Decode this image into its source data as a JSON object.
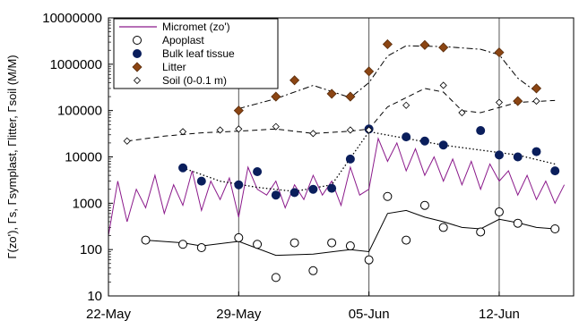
{
  "chart_data": {
    "type": "line",
    "title": "",
    "xlabel": "",
    "ylabel": "Γ(zo'), Γs, Γsymplast, Γlitter, Γsoil (M/M)",
    "y_scale": "log",
    "ylim": [
      10,
      10000000
    ],
    "xlim": [
      "2010-05-22",
      "2010-06-16"
    ],
    "grid": "vertical lines at date ticks",
    "legend_position": "top-left",
    "y_ticks": [
      "10",
      "100",
      "1000",
      "10000",
      "100000",
      "1000000",
      "10000000"
    ],
    "x_ticks": [
      "22-May",
      "29-May",
      "05-Jun",
      "12-Jun"
    ],
    "series": [
      {
        "name": "Micromet (zo')",
        "style": "line",
        "color": "#8b1a8b",
        "x": [
          "2010-05-22",
          "2010-05-22.5",
          "2010-05-23",
          "2010-05-23.5",
          "2010-05-24",
          "2010-05-24.5",
          "2010-05-25",
          "2010-05-25.5",
          "2010-05-26",
          "2010-05-26.5",
          "2010-05-27",
          "2010-05-27.5",
          "2010-05-28",
          "2010-05-28.5",
          "2010-05-29",
          "2010-05-29.5",
          "2010-05-30",
          "2010-05-30.5",
          "2010-05-31",
          "2010-05-31.5",
          "2010-06-01",
          "2010-06-01.5",
          "2010-06-02",
          "2010-06-02.5",
          "2010-06-03",
          "2010-06-03.5",
          "2010-06-04",
          "2010-06-04.5",
          "2010-06-05",
          "2010-06-05.5",
          "2010-06-06",
          "2010-06-06.5",
          "2010-06-07",
          "2010-06-07.5",
          "2010-06-08",
          "2010-06-08.5",
          "2010-06-09",
          "2010-06-09.5",
          "2010-06-10",
          "2010-06-10.5",
          "2010-06-11",
          "2010-06-11.5",
          "2010-06-12",
          "2010-06-12.5",
          "2010-06-13",
          "2010-06-13.5",
          "2010-06-14",
          "2010-06-14.5",
          "2010-06-15",
          "2010-06-15.5"
        ],
        "values": [
          200,
          3000,
          400,
          2000,
          800,
          4000,
          600,
          2500,
          900,
          5000,
          700,
          3000,
          1200,
          3500,
          500,
          6000,
          2000,
          1500,
          3000,
          800,
          2500,
          1200,
          4000,
          1500,
          3000,
          900,
          6000,
          1500,
          2000,
          25000,
          8000,
          20000,
          5000,
          15000,
          4000,
          10000,
          3000,
          9000,
          2500,
          8000,
          2000,
          7000,
          3000,
          5000,
          1500,
          4000,
          1200,
          3000,
          1000,
          2500
        ]
      },
      {
        "name": "Apoplast",
        "style": "open-circle",
        "x": [
          "2010-05-24",
          "2010-05-26",
          "2010-05-27",
          "2010-05-29",
          "2010-05-30",
          "2010-05-31",
          "2010-06-01",
          "2010-06-02",
          "2010-06-03",
          "2010-06-04",
          "2010-06-05",
          "2010-06-06",
          "2010-06-07",
          "2010-06-08",
          "2010-06-09",
          "2010-06-11",
          "2010-06-12",
          "2010-06-13",
          "2010-06-15"
        ],
        "values": [
          160,
          130,
          110,
          180,
          130,
          25,
          140,
          35,
          140,
          120,
          60,
          1400,
          160,
          900,
          300,
          240,
          650,
          370,
          280
        ]
      },
      {
        "name": "Apoplast (fit)",
        "style": "solid-line",
        "x": [
          "2010-05-24",
          "2010-05-26",
          "2010-05-27",
          "2010-05-29",
          "2010-05-31",
          "2010-06-02",
          "2010-06-04",
          "2010-06-05",
          "2010-06-06",
          "2010-06-07",
          "2010-06-08",
          "2010-06-09",
          "2010-06-10",
          "2010-06-11",
          "2010-06-12",
          "2010-06-13",
          "2010-06-14",
          "2010-06-15"
        ],
        "values": [
          160,
          140,
          120,
          150,
          75,
          80,
          100,
          90,
          600,
          700,
          500,
          400,
          300,
          280,
          450,
          380,
          300,
          280
        ]
      },
      {
        "name": "Bulk leaf tissue",
        "style": "filled-circle",
        "x": [
          "2010-05-26",
          "2010-05-27",
          "2010-05-29",
          "2010-05-30",
          "2010-05-31",
          "2010-06-01",
          "2010-06-02",
          "2010-06-03",
          "2010-06-04",
          "2010-06-05",
          "2010-06-07",
          "2010-06-08",
          "2010-06-09",
          "2010-06-11",
          "2010-06-12",
          "2010-06-13",
          "2010-06-14",
          "2010-06-15"
        ],
        "values": [
          5800,
          3000,
          2500,
          4800,
          1500,
          1700,
          2000,
          2100,
          9000,
          40000,
          27000,
          22000,
          18000,
          37000,
          11000,
          10000,
          13000,
          5000
        ]
      },
      {
        "name": "Bulk leaf tissue (fit)",
        "style": "dotted-line",
        "x": [
          "2010-05-26",
          "2010-05-28",
          "2010-05-30",
          "2010-06-01",
          "2010-06-03",
          "2010-06-05",
          "2010-06-07",
          "2010-06-09",
          "2010-06-11",
          "2010-06-13",
          "2010-06-15"
        ],
        "values": [
          5800,
          3000,
          2200,
          1800,
          2500,
          35000,
          25000,
          18000,
          14000,
          11000,
          7000
        ]
      },
      {
        "name": "Litter",
        "style": "filled-diamond",
        "color": "#8b4513",
        "x": [
          "2010-05-29",
          "2010-05-31",
          "2010-06-01",
          "2010-06-03",
          "2010-06-04",
          "2010-06-05",
          "2010-06-06",
          "2010-06-08",
          "2010-06-09",
          "2010-06-12",
          "2010-06-13",
          "2010-06-14"
        ],
        "values": [
          100000,
          200000,
          450000,
          230000,
          200000,
          700000,
          2700000,
          2600000,
          2300000,
          1800000,
          160000,
          300000
        ]
      },
      {
        "name": "Litter (fit)",
        "style": "dash-dot-line",
        "x": [
          "2010-05-29",
          "2010-05-31",
          "2010-06-02",
          "2010-06-04",
          "2010-06-05",
          "2010-06-06",
          "2010-06-07",
          "2010-06-09",
          "2010-06-11",
          "2010-06-12",
          "2010-06-13",
          "2010-06-14"
        ],
        "values": [
          110000,
          180000,
          350000,
          190000,
          400000,
          1500000,
          2500000,
          2400000,
          2100000,
          1600000,
          500000,
          250000
        ]
      },
      {
        "name": "Soil (0-0.1 m)",
        "style": "open-diamond",
        "x": [
          "2010-05-23",
          "2010-05-26",
          "2010-05-28",
          "2010-05-29",
          "2010-05-31",
          "2010-06-02",
          "2010-06-04",
          "2010-06-05",
          "2010-06-07",
          "2010-06-09",
          "2010-06-10",
          "2010-06-12",
          "2010-06-14"
        ],
        "values": [
          22000,
          35000,
          38000,
          40000,
          45000,
          32000,
          38000,
          38000,
          130000,
          350000,
          90000,
          150000,
          160000
        ]
      },
      {
        "name": "Soil (fit)",
        "style": "dashed-line",
        "x": [
          "2010-05-23",
          "2010-05-25",
          "2010-05-27",
          "2010-05-29",
          "2010-05-31",
          "2010-06-02",
          "2010-06-04",
          "2010-06-05",
          "2010-06-06",
          "2010-06-08",
          "2010-06-09",
          "2010-06-10",
          "2010-06-11",
          "2010-06-13",
          "2010-06-15"
        ],
        "values": [
          22000,
          28000,
          33000,
          36000,
          40000,
          32000,
          36000,
          40000,
          120000,
          300000,
          250000,
          100000,
          90000,
          150000,
          165000
        ]
      }
    ],
    "legend": [
      {
        "label": "Micromet (zo')",
        "marker": "line",
        "color": "#8b1a8b"
      },
      {
        "label": "Apoplast",
        "marker": "open-circle"
      },
      {
        "label": "Bulk leaf tissue",
        "marker": "filled-circle"
      },
      {
        "label": "Litter",
        "marker": "filled-diamond",
        "color": "#8b4513"
      },
      {
        "label": "Soil (0-0.1 m)",
        "marker": "open-diamond"
      }
    ]
  }
}
